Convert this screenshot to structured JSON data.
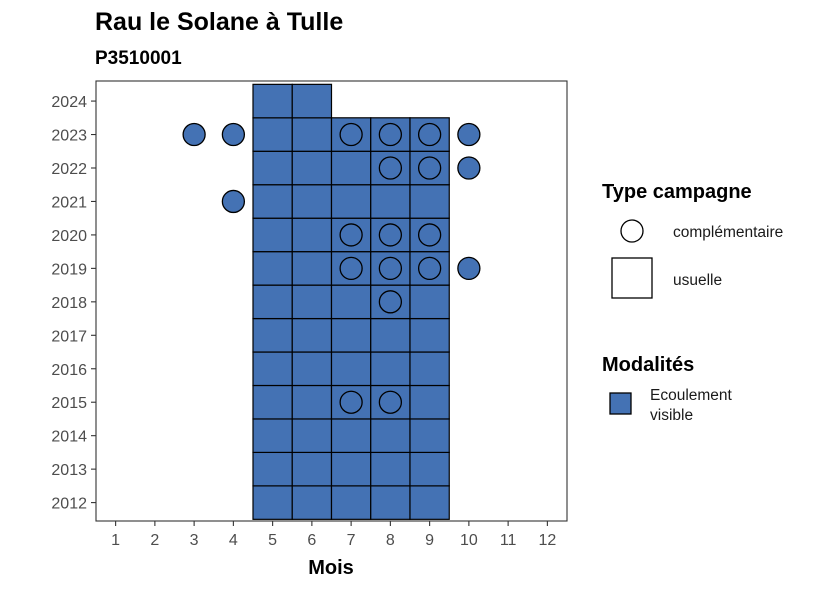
{
  "chart_data": {
    "type": "heatmap",
    "title": "Rau le Solane à Tulle",
    "subtitle": "P3510001",
    "xlabel": "Mois",
    "ylabel": "",
    "x_ticks": [
      1,
      2,
      3,
      4,
      5,
      6,
      7,
      8,
      9,
      10,
      11,
      12
    ],
    "y_ticks": [
      2012,
      2013,
      2014,
      2015,
      2016,
      2017,
      2018,
      2019,
      2020,
      2021,
      2022,
      2023,
      2024
    ],
    "xlim": [
      0.5,
      12.5
    ],
    "ylim": [
      2011.45,
      2024.6
    ],
    "grid": false,
    "fill_color": "#4472b4",
    "usuelle": [
      {
        "year": 2012,
        "months": [
          5,
          6,
          7,
          8,
          9
        ]
      },
      {
        "year": 2013,
        "months": [
          5,
          6,
          7,
          8,
          9
        ]
      },
      {
        "year": 2014,
        "months": [
          5,
          6,
          7,
          8,
          9
        ]
      },
      {
        "year": 2015,
        "months": [
          5,
          6,
          7,
          8,
          9
        ]
      },
      {
        "year": 2016,
        "months": [
          5,
          6,
          7,
          8,
          9
        ]
      },
      {
        "year": 2017,
        "months": [
          5,
          6,
          7,
          8,
          9
        ]
      },
      {
        "year": 2018,
        "months": [
          5,
          6,
          7,
          8,
          9
        ]
      },
      {
        "year": 2019,
        "months": [
          5,
          6,
          7,
          8,
          9
        ]
      },
      {
        "year": 2020,
        "months": [
          5,
          6,
          7,
          8,
          9
        ]
      },
      {
        "year": 2021,
        "months": [
          5,
          6,
          7,
          8,
          9
        ]
      },
      {
        "year": 2022,
        "months": [
          5,
          6,
          7,
          8,
          9
        ]
      },
      {
        "year": 2023,
        "months": [
          5,
          6,
          7,
          8,
          9
        ]
      },
      {
        "year": 2024,
        "months": [
          5,
          6
        ]
      }
    ],
    "complementaire": [
      {
        "year": 2015,
        "month": 7,
        "filled": false
      },
      {
        "year": 2015,
        "month": 8,
        "filled": false
      },
      {
        "year": 2018,
        "month": 8,
        "filled": false
      },
      {
        "year": 2019,
        "month": 7,
        "filled": false
      },
      {
        "year": 2019,
        "month": 8,
        "filled": false
      },
      {
        "year": 2019,
        "month": 9,
        "filled": false
      },
      {
        "year": 2019,
        "month": 10,
        "filled": true
      },
      {
        "year": 2020,
        "month": 7,
        "filled": false
      },
      {
        "year": 2020,
        "month": 8,
        "filled": false
      },
      {
        "year": 2020,
        "month": 9,
        "filled": false
      },
      {
        "year": 2021,
        "month": 4,
        "filled": true
      },
      {
        "year": 2022,
        "month": 8,
        "filled": false
      },
      {
        "year": 2022,
        "month": 9,
        "filled": false
      },
      {
        "year": 2022,
        "month": 10,
        "filled": true
      },
      {
        "year": 2023,
        "month": 3,
        "filled": true
      },
      {
        "year": 2023,
        "month": 4,
        "filled": true
      },
      {
        "year": 2023,
        "month": 7,
        "filled": false
      },
      {
        "year": 2023,
        "month": 8,
        "filled": false
      },
      {
        "year": 2023,
        "month": 9,
        "filled": false
      },
      {
        "year": 2023,
        "month": 10,
        "filled": true
      }
    ],
    "legends": [
      {
        "title": "Type campagne",
        "items": [
          {
            "shape": "circle",
            "label": "complémentaire"
          },
          {
            "shape": "square",
            "label": "usuelle"
          }
        ]
      },
      {
        "title": "Modalités",
        "items": [
          {
            "shape": "filled-square",
            "label_lines": [
              "Ecoulement",
              "visible"
            ]
          }
        ]
      }
    ],
    "legend_position": "right"
  }
}
